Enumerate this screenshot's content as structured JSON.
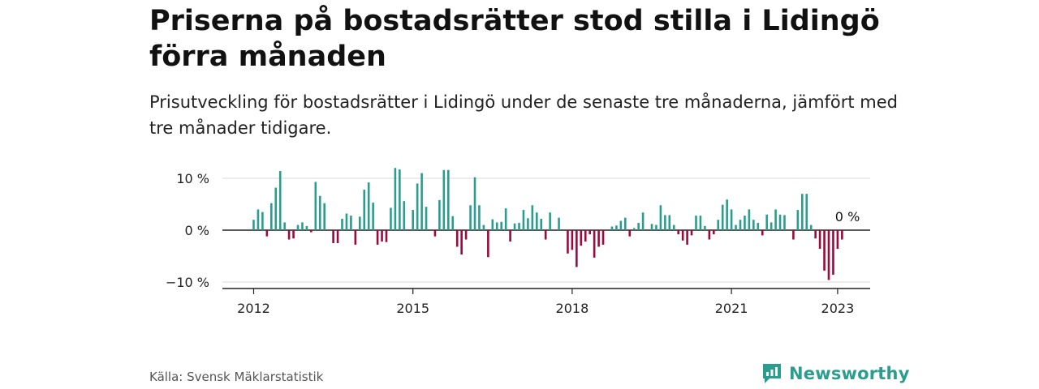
{
  "title": "Priserna på bostadsrätter stod stilla i Lidingö förra månaden",
  "subtitle": "Prisutveckling för bostadsrätter i Lidingö under de senaste tre månaderna, jämfört med tre månader tidigare.",
  "source": "Källa: Svensk Mäklarstatistik",
  "brand": "Newsworthy",
  "colors": {
    "positive": "#2a9d8f",
    "negative": "#9b0a3c",
    "axis": "#222222",
    "grid": "#d9d9d9",
    "brand": "#2a9d8f"
  },
  "chart_data": {
    "type": "bar",
    "y_unit": "%",
    "ylim": [
      -11,
      12
    ],
    "y_ticks": [
      10,
      0,
      -10
    ],
    "y_tick_labels": [
      "10 %",
      "0 %",
      "−10 %"
    ],
    "x_ticks": [
      "2012",
      "2015",
      "2018",
      "2021",
      "2023"
    ],
    "start": "2012-01",
    "grid": true,
    "last_value_label": "0 %",
    "values": [
      2.0,
      4.0,
      3.5,
      -1.2,
      5.2,
      8.2,
      11.4,
      1.5,
      -1.8,
      -1.6,
      1.0,
      1.5,
      0.8,
      -0.4,
      9.3,
      6.6,
      5.2,
      0.0,
      -2.5,
      -2.5,
      2.2,
      3.2,
      2.8,
      -2.8,
      2.6,
      7.8,
      9.2,
      5.3,
      -2.8,
      -2.2,
      -2.3,
      4.3,
      12.0,
      11.7,
      5.6,
      0.0,
      3.9,
      9.0,
      11.0,
      4.5,
      0.0,
      -1.2,
      5.8,
      11.6,
      11.6,
      2.7,
      -3.2,
      -4.7,
      -1.8,
      4.8,
      10.2,
      4.8,
      1.0,
      -5.2,
      2.1,
      1.5,
      1.6,
      4.2,
      -2.2,
      1.3,
      1.4,
      3.9,
      2.3,
      4.8,
      3.4,
      2.2,
      -1.8,
      3.4,
      0.0,
      2.4,
      0.0,
      -4.5,
      -3.8,
      -7.1,
      -3.0,
      -2.2,
      -0.8,
      -5.3,
      -3.2,
      -2.8,
      0.0,
      0.7,
      0.9,
      1.8,
      2.4,
      -1.2,
      0.4,
      1.4,
      3.4,
      0.0,
      1.2,
      1.0,
      4.8,
      2.9,
      2.9,
      1.0,
      -0.8,
      -2.0,
      -2.8,
      -1.0,
      2.8,
      2.8,
      0.8,
      -1.8,
      -0.8,
      2.0,
      4.9,
      5.9,
      4.0,
      1.0,
      2.0,
      2.8,
      4.0,
      2.0,
      1.4,
      -1.0,
      3.0,
      1.5,
      4.0,
      3.0,
      2.9,
      0.0,
      -1.8,
      3.9,
      7.0,
      7.0,
      1.0,
      -1.6,
      -3.6,
      -7.8,
      -9.6,
      -8.6,
      -3.6,
      -1.8,
      0.0
    ]
  }
}
